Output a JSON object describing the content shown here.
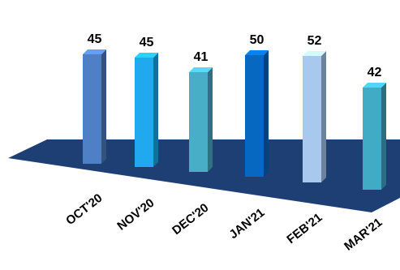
{
  "chart_data": {
    "type": "bar",
    "categories": [
      "OCT'20",
      "NOV'20",
      "DEC'20",
      "JAN'21",
      "FEB'21",
      "MAR'21"
    ],
    "values": [
      45,
      45,
      41,
      50,
      52,
      42
    ],
    "title": "",
    "xlabel": "",
    "ylabel": "",
    "ylim": [
      0,
      55
    ],
    "grid": false,
    "legend": "none",
    "colors": [
      "#4F7FC4",
      "#21A9F0",
      "#48AEC8",
      "#0668C0",
      "#A8C8EE",
      "#41ABC6"
    ],
    "floor_color": "#1E3F73"
  }
}
